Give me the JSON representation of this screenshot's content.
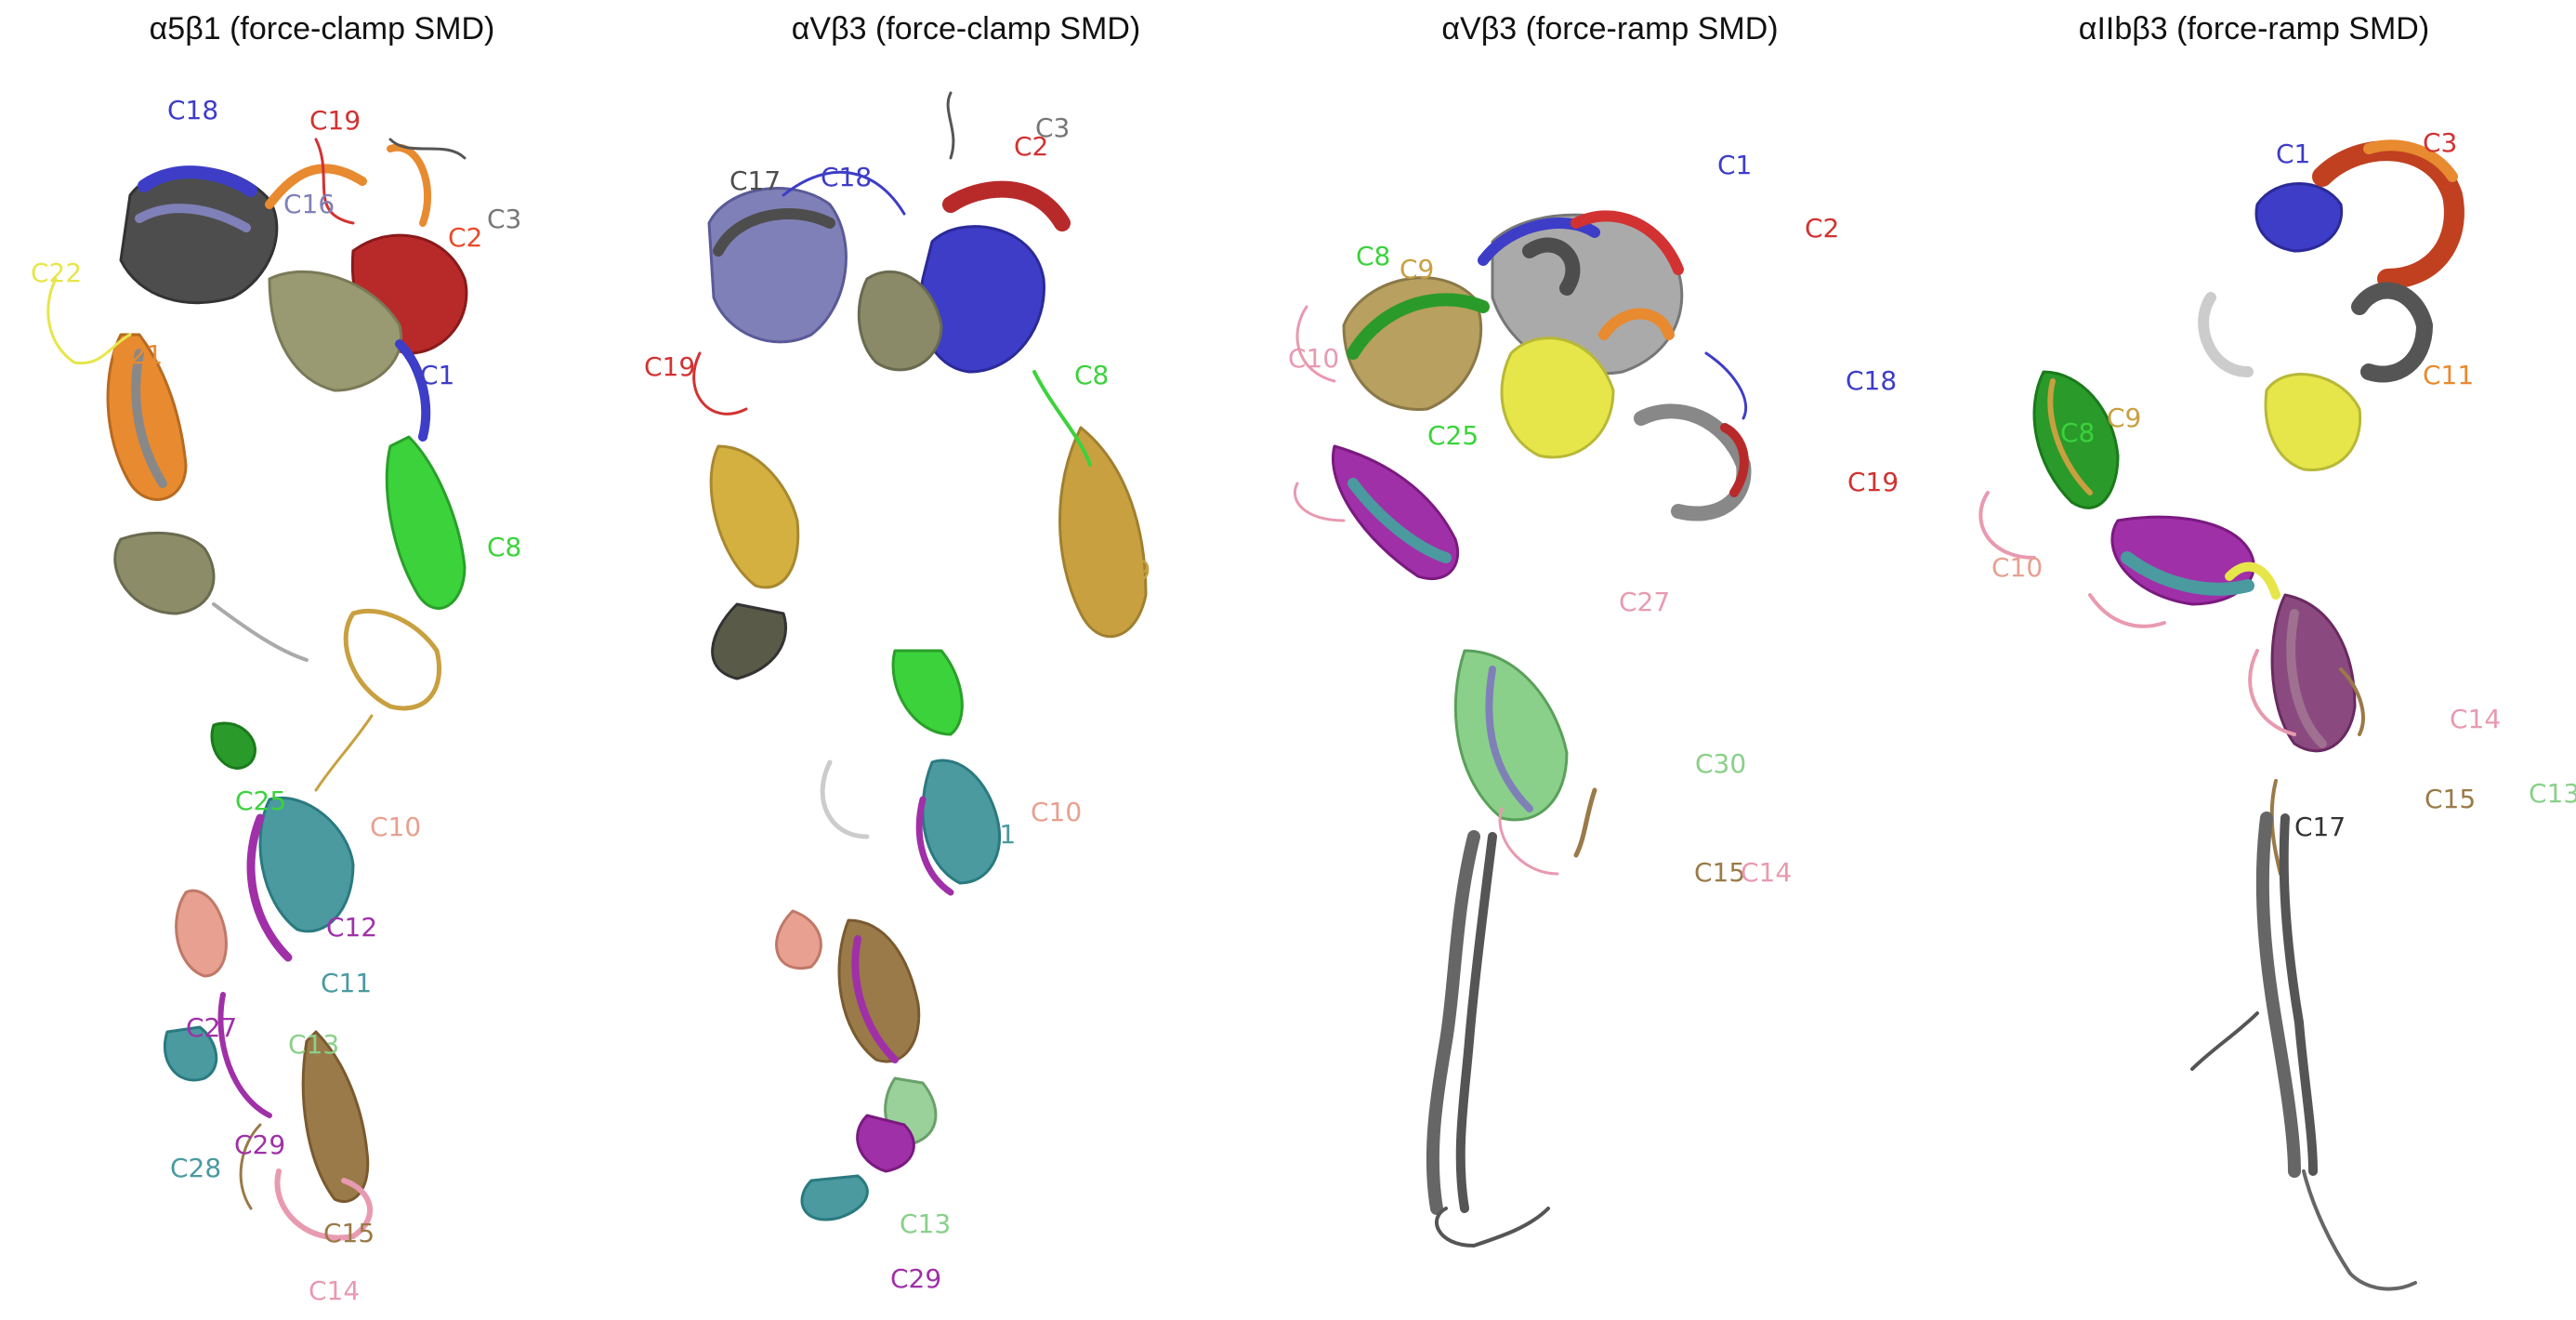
{
  "figure": {
    "panels": [
      {
        "title": "α5β1 (force-clamp SMD)",
        "labels": [
          "C18",
          "C19",
          "C16",
          "C3",
          "C2",
          "C22",
          "C21",
          "C1",
          "C8",
          "C25",
          "C10",
          "C12",
          "C11",
          "C27",
          "C13",
          "C29",
          "C28",
          "C15",
          "C14"
        ]
      },
      {
        "title": "αVβ3 (force-clamp SMD)",
        "labels": [
          "C17",
          "C18",
          "C3",
          "C2",
          "C19",
          "C8",
          "C9",
          "C10",
          "C11",
          "C13",
          "C29"
        ]
      },
      {
        "title": "αVβ3 (force-ramp SMD)",
        "labels": [
          "C1",
          "C2",
          "C8",
          "C9",
          "C10",
          "C18",
          "C19",
          "C25",
          "C27",
          "C30",
          "C15",
          "C14"
        ]
      },
      {
        "title": "αIIbβ3 (force-ramp SMD)",
        "labels": [
          "C1",
          "C3",
          "C8",
          "C9",
          "C10",
          "C11",
          "C14",
          "C15",
          "C13",
          "C17"
        ]
      }
    ],
    "colors": {
      "gray": "#4d4d4d",
      "blue": "#3d3dc8",
      "red": "#d23232",
      "orange": "#e88a30",
      "yellow": "#e6e64a",
      "olive": "#9a9a72",
      "green": "#3cd23c",
      "darkgreen": "#2a9a2a",
      "gold": "#c8a040",
      "tan": "#9a7a48",
      "cyan": "#4a9aa0",
      "magenta": "#a030a8",
      "pink": "#e89ab0",
      "salmon": "#e8a090",
      "lightgray": "#b0b0b0",
      "lavender": "#8080b8",
      "lightgreen": "#8ad08a"
    }
  }
}
